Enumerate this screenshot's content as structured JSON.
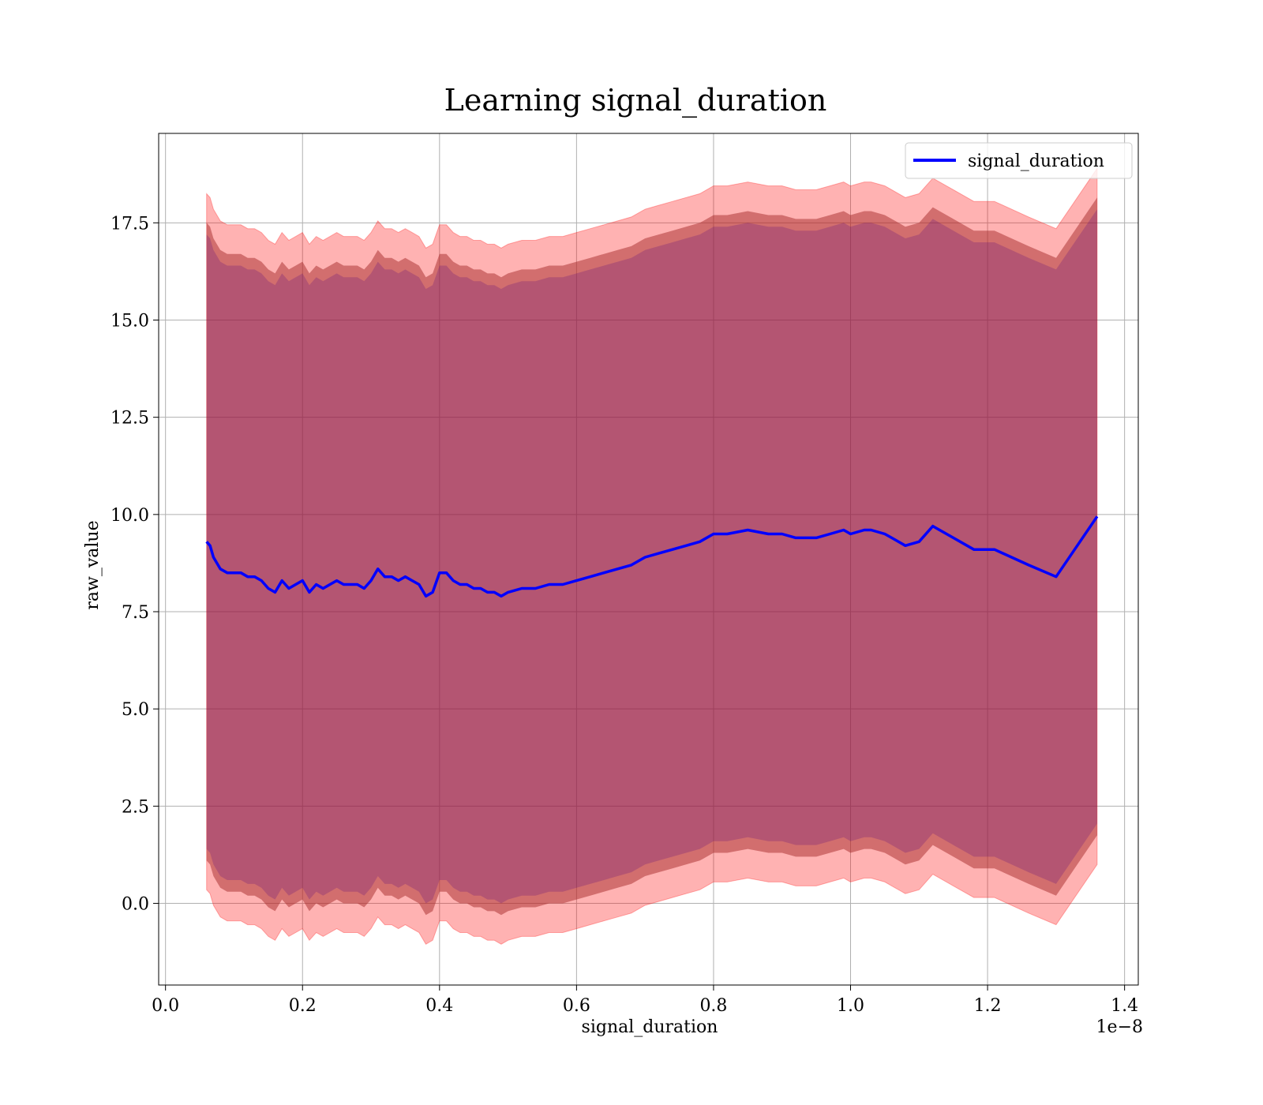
{
  "chart_data": {
    "type": "line",
    "title": "Learning signal_duration",
    "xlabel": "signal_duration",
    "ylabel": "raw_value",
    "x_offset_label": "1e−8",
    "xlim": [
      -0.01,
      1.42
    ],
    "ylim": [
      -2.1,
      19.8
    ],
    "x_ticks": [
      0.0,
      0.2,
      0.4,
      0.6,
      0.8,
      1.0,
      1.2,
      1.4
    ],
    "x_tick_labels": [
      "0.0",
      "0.2",
      "0.4",
      "0.6",
      "0.8",
      "1.0",
      "1.2",
      "1.4"
    ],
    "y_ticks": [
      0.0,
      2.5,
      5.0,
      7.5,
      10.0,
      12.5,
      15.0,
      17.5
    ],
    "y_tick_labels": [
      "0.0",
      "2.5",
      "5.0",
      "7.5",
      "10.0",
      "12.5",
      "15.0",
      "17.5"
    ],
    "grid": true,
    "legend": {
      "placement": "upper-right",
      "entries": [
        "signal_duration"
      ]
    },
    "colors": {
      "line": "#0000ff",
      "band_outer": "#ff0000",
      "band_middle": "#a52a2a",
      "band_inner": "#4b0082"
    },
    "series": [
      {
        "name": "signal_duration",
        "x": [
          0.06,
          0.065,
          0.07,
          0.08,
          0.09,
          0.1,
          0.11,
          0.12,
          0.13,
          0.14,
          0.15,
          0.16,
          0.17,
          0.18,
          0.19,
          0.2,
          0.21,
          0.22,
          0.23,
          0.24,
          0.25,
          0.26,
          0.27,
          0.28,
          0.29,
          0.3,
          0.31,
          0.32,
          0.33,
          0.34,
          0.35,
          0.36,
          0.37,
          0.38,
          0.39,
          0.4,
          0.41,
          0.42,
          0.43,
          0.44,
          0.45,
          0.46,
          0.47,
          0.48,
          0.49,
          0.5,
          0.52,
          0.54,
          0.56,
          0.58,
          0.6,
          0.62,
          0.64,
          0.66,
          0.68,
          0.7,
          0.72,
          0.74,
          0.76,
          0.78,
          0.8,
          0.82,
          0.85,
          0.88,
          0.9,
          0.92,
          0.95,
          0.97,
          0.99,
          1.0,
          1.02,
          1.03,
          1.05,
          1.06,
          1.08,
          1.1,
          1.12,
          1.15,
          1.18,
          1.21,
          1.26,
          1.3,
          1.36
        ],
        "y": [
          9.3,
          9.2,
          8.9,
          8.6,
          8.5,
          8.5,
          8.5,
          8.4,
          8.4,
          8.3,
          8.1,
          8.0,
          8.3,
          8.1,
          8.2,
          8.3,
          8.0,
          8.2,
          8.1,
          8.2,
          8.3,
          8.2,
          8.2,
          8.2,
          8.1,
          8.3,
          8.6,
          8.4,
          8.4,
          8.3,
          8.4,
          8.3,
          8.2,
          7.9,
          8.0,
          8.5,
          8.5,
          8.3,
          8.2,
          8.2,
          8.1,
          8.1,
          8.0,
          8.0,
          7.9,
          8.0,
          8.1,
          8.1,
          8.2,
          8.2,
          8.3,
          8.4,
          8.5,
          8.6,
          8.7,
          8.9,
          9.0,
          9.1,
          9.2,
          9.3,
          9.5,
          9.5,
          9.6,
          9.5,
          9.5,
          9.4,
          9.4,
          9.5,
          9.6,
          9.5,
          9.6,
          9.6,
          9.5,
          9.4,
          9.2,
          9.3,
          9.7,
          9.4,
          9.1,
          9.1,
          8.7,
          8.4,
          9.95
        ],
        "band_outer_half_width": 8.95,
        "band_middle_half_width": 8.2,
        "band_inner_half_width": 7.9
      }
    ]
  }
}
